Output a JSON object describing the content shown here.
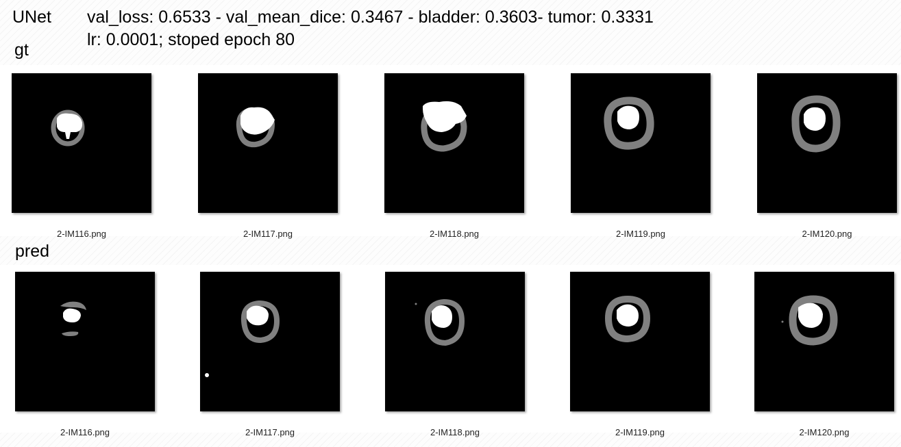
{
  "header": {
    "model_name": "UNet",
    "metrics_line1": "val_loss: 0.6533 - val_mean_dice: 0.3467 - bladder: 0.3603- tumor: 0.3331",
    "metrics_line2": "lr: 0.0001; stoped epoch 80"
  },
  "sections": {
    "gt": {
      "label": "gt",
      "files": [
        "2-IM116.png",
        "2-IM117.png",
        "2-IM118.png",
        "2-IM119.png",
        "2-IM120.png"
      ]
    },
    "pred": {
      "label": "pred",
      "files": [
        "2-IM116.png",
        "2-IM117.png",
        "2-IM118.png",
        "2-IM119.png",
        "2-IM120.png"
      ]
    }
  },
  "colors": {
    "background": "#000000",
    "bladder": "#808080",
    "tumor": "#ffffff"
  }
}
